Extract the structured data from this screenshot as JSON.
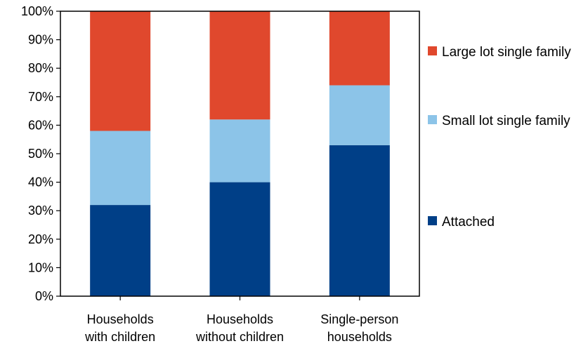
{
  "chart_data": {
    "type": "bar",
    "stacked": true,
    "categories": [
      [
        "Households",
        "with children"
      ],
      [
        "Households",
        "without children"
      ],
      [
        "Single-person",
        "households"
      ]
    ],
    "series": [
      {
        "name": "Attached",
        "color": "#003f87",
        "values": [
          32,
          40,
          53
        ]
      },
      {
        "name": "Small lot single family",
        "color": "#8cc4e8",
        "values": [
          26,
          22,
          21
        ]
      },
      {
        "name": "Large lot single family",
        "color": "#e0482d",
        "values": [
          42,
          38,
          26
        ]
      }
    ],
    "ylim": [
      0,
      100
    ],
    "y_ticks": [
      "0%",
      "10%",
      "20%",
      "30%",
      "40%",
      "50%",
      "60%",
      "70%",
      "80%",
      "90%",
      "100%"
    ],
    "legend_order": [
      "Large lot single family",
      "Small lot single family",
      "Attached"
    ],
    "legend_position": "right",
    "grid": false
  }
}
